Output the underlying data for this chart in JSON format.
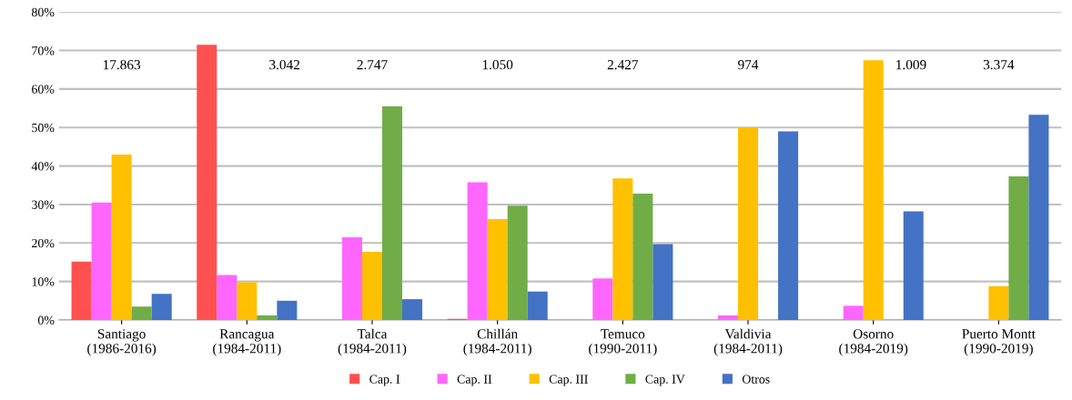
{
  "chart_data": {
    "type": "bar",
    "categories": [
      "Santiago\n(1986-2016)",
      "Rancagua\n(1984-2011)",
      "Talca\n(1984-2011)",
      "Chillán\n(1984-2011)",
      "Temuco\n(1990-2011)",
      "Valdivia\n(1984-2011)",
      "Osorno\n(1984-2019)",
      "Puerto Montt\n(1990-2019)"
    ],
    "series": [
      {
        "name": "Cap. I",
        "color": "#ff5050",
        "values": [
          15.2,
          71.5,
          0,
          0.3,
          0,
          0,
          0,
          0
        ]
      },
      {
        "name": "Cap. II",
        "color": "#ff66ff",
        "values": [
          30.5,
          11.7,
          21.5,
          35.8,
          10.8,
          1.2,
          3.7,
          0
        ]
      },
      {
        "name": "Cap. III",
        "color": "#ffc000",
        "values": [
          43,
          9.8,
          17.7,
          26.2,
          36.8,
          50,
          67.5,
          8.8
        ]
      },
      {
        "name": "Cap. IV",
        "color": "#70ad47",
        "values": [
          3.5,
          1.2,
          55.5,
          29.7,
          32.8,
          0,
          0,
          37.3
        ]
      },
      {
        "name": "Otros",
        "color": "#4472c4",
        "values": [
          6.8,
          5,
          5.4,
          7.4,
          19.7,
          49,
          28.2,
          53.3
        ]
      }
    ],
    "ylim": [
      0,
      80
    ],
    "yticks": [
      {
        "value": 0,
        "label": "0%"
      },
      {
        "value": 10,
        "label": "10%"
      },
      {
        "value": 20,
        "label": "20%"
      },
      {
        "value": 30,
        "label": "30%"
      },
      {
        "value": 40,
        "label": "40%"
      },
      {
        "value": 50,
        "label": "50%"
      },
      {
        "value": 60,
        "label": "60%"
      },
      {
        "value": 70,
        "label": "70%"
      },
      {
        "value": 80,
        "label": "80%"
      }
    ],
    "annotations": [
      "17.863",
      "3.042",
      "2.747",
      "1.050",
      "2.427",
      "974",
      "1.009",
      "3.374"
    ],
    "grid": "y",
    "legend": "bottom"
  }
}
